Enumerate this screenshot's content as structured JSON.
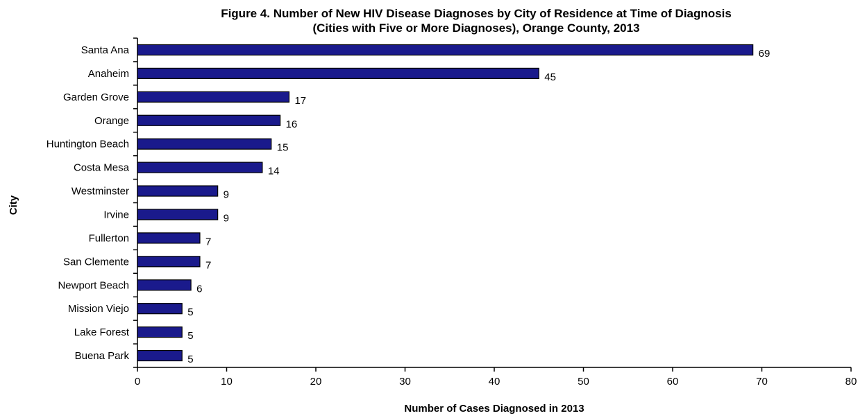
{
  "chart_data": {
    "type": "bar",
    "orientation": "horizontal",
    "title": "Figure 4. Number of New HIV Disease Diagnoses by City of Residence at Time of Diagnosis",
    "subtitle": "(Cities with Five or More Diagnoses), Orange County, 2013",
    "xlabel": "Number of Cases Diagnosed in 2013",
    "ylabel": "City",
    "xlim": [
      0,
      80
    ],
    "xticks": [
      0,
      10,
      20,
      30,
      40,
      50,
      60,
      70,
      80
    ],
    "grid": false,
    "legend": "none",
    "bar_color": "#1a1a8c",
    "categories": [
      "Santa Ana",
      "Anaheim",
      "Garden Grove",
      "Orange",
      "Huntington Beach",
      "Costa Mesa",
      "Westminster",
      "Irvine",
      "Fullerton",
      "San Clemente",
      "Newport Beach",
      "Mission Viejo",
      "Lake Forest",
      "Buena Park"
    ],
    "values": [
      69,
      45,
      17,
      16,
      15,
      14,
      9,
      9,
      7,
      7,
      6,
      5,
      5,
      5
    ]
  }
}
